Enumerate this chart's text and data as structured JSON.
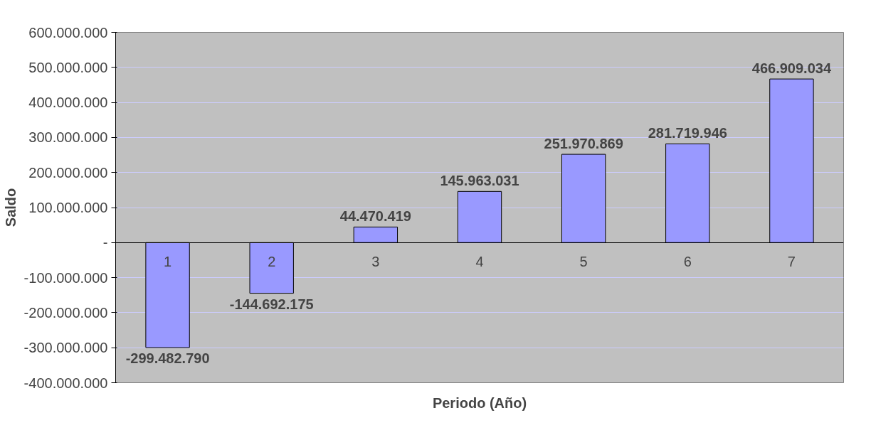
{
  "chart_data": {
    "type": "bar",
    "xlabel": "Periodo (Año)",
    "ylabel": "Saldo",
    "categories": [
      "1",
      "2",
      "3",
      "4",
      "5",
      "6",
      "7"
    ],
    "series": [
      {
        "color": "#9999ff",
        "values": [
          -299482790,
          -144692175,
          44470419,
          145963031,
          251970869,
          281719946,
          466909034
        ]
      }
    ],
    "value_labels": [
      "-299.482.790",
      "-144.692.175",
      "44.470.419",
      "145.963.031",
      "251.970.869",
      "281.719.946",
      "466.909.034"
    ],
    "ylim": [
      -400000000,
      600000000
    ],
    "yticks": [
      {
        "value": -400000000,
        "label": "-400.000.000"
      },
      {
        "value": -300000000,
        "label": "-300.000.000"
      },
      {
        "value": -200000000,
        "label": "-200.000.000"
      },
      {
        "value": -100000000,
        "label": "-100.000.000"
      },
      {
        "value": 0,
        "label": "-"
      },
      {
        "value": 100000000,
        "label": "100.000.000"
      },
      {
        "value": 200000000,
        "label": "200.000.000"
      },
      {
        "value": 300000000,
        "label": "300.000.000"
      },
      {
        "value": 400000000,
        "label": "400.000.000"
      },
      {
        "value": 500000000,
        "label": "500.000.000"
      },
      {
        "value": 600000000,
        "label": "600.000.000"
      }
    ],
    "grid": "y"
  }
}
